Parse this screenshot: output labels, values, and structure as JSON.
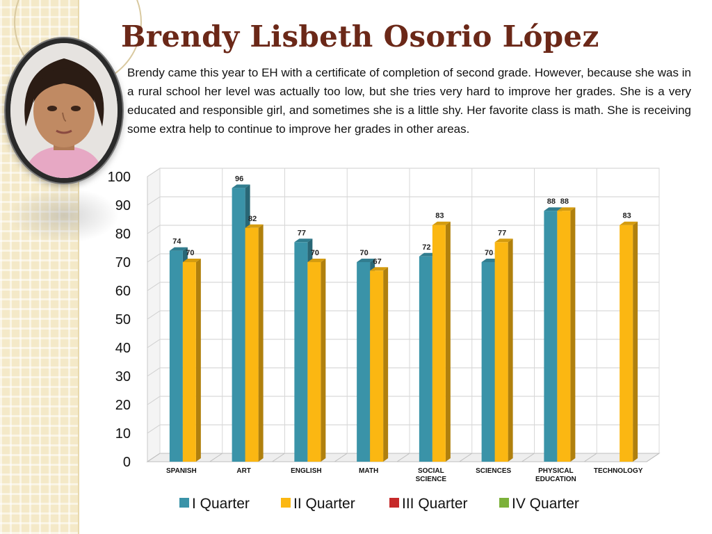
{
  "slide": {
    "title": "Brendy Lisbeth Osorio López",
    "description": "Brendy came this year to EH with a certificate of completion of second grade. However, because she was in a rural school her level was actually too low, but she tries very hard to improve her grades.  She is a very educated and responsible girl, and sometimes she is  a little shy.  Her favorite class is math.  She is receiving some extra help to continue to improve her grades in other areas."
  },
  "colors": {
    "title": "#6b2818",
    "q1": "#3a93a8",
    "q2": "#fbb712",
    "q3": "#c62a2a",
    "q4": "#7cb13a",
    "side_pattern": "#f4e9c8"
  },
  "chart_data": {
    "type": "bar",
    "categories": [
      "SPANISH",
      "ART",
      "ENGLISH",
      "MATH",
      "SOCIAL SCIENCE",
      "SCIENCES",
      "PHYSICAL EDUCATION",
      "TECHNOLOGY"
    ],
    "series": [
      {
        "name": "I Quarter",
        "color": "#3a93a8",
        "values": [
          74,
          96,
          77,
          70,
          72,
          70,
          88,
          null
        ]
      },
      {
        "name": "II Quarter",
        "color": "#fbb712",
        "values": [
          70,
          82,
          70,
          67,
          83,
          77,
          88,
          83
        ]
      },
      {
        "name": "III Quarter",
        "color": "#c62a2a",
        "values": [
          null,
          null,
          null,
          null,
          null,
          null,
          null,
          null
        ]
      },
      {
        "name": "IV Quarter",
        "color": "#7cb13a",
        "values": [
          null,
          null,
          null,
          null,
          null,
          null,
          null,
          null
        ]
      }
    ],
    "yticks": [
      0,
      10,
      20,
      30,
      40,
      50,
      60,
      70,
      80,
      90,
      100
    ],
    "ylim": [
      0,
      100
    ],
    "grid": true,
    "legend": "bottom",
    "three_d": true
  }
}
